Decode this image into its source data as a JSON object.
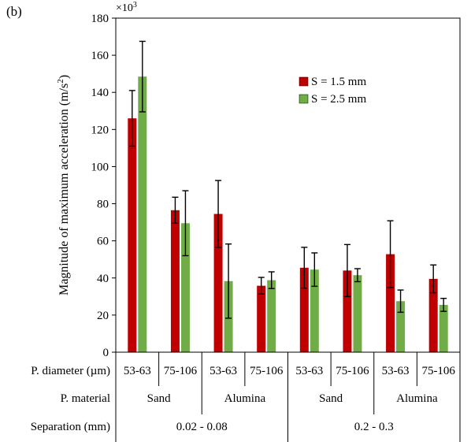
{
  "chart_data": {
    "type": "bar",
    "panel_label": "(b)",
    "ylabel_text": "Magnitude of maximum acceleration (m/s",
    "ylabel_sup": "2",
    "ylabel_tail": ")",
    "y_multiplier": "×10",
    "y_multiplier_exp": "3",
    "ylim": [
      0,
      180
    ],
    "yticks": [
      0,
      20,
      40,
      60,
      80,
      100,
      120,
      140,
      160,
      180
    ],
    "grid": false,
    "legend_position": "top-right",
    "categories": [
      "53-63",
      "75-106",
      "53-63",
      "75-106",
      "53-63",
      "75-106",
      "53-63",
      "75-106"
    ],
    "series": [
      {
        "name": "S = 1.5 mm",
        "color": "#c00000",
        "values": [
          126,
          76.5,
          74.5,
          35.8,
          45.5,
          44,
          52.8,
          39.5
        ],
        "error": [
          15,
          7,
          18,
          4.5,
          11,
          14,
          18,
          7.5
        ]
      },
      {
        "name": "S = 2.5 mm",
        "color": "#70ad47",
        "values": [
          148.5,
          69.5,
          38.3,
          38.8,
          44.5,
          41.5,
          27.5,
          25.5
        ],
        "error": [
          19,
          17.5,
          20,
          4.5,
          9,
          3.5,
          6,
          3.5
        ]
      }
    ],
    "table": {
      "diameter_label": "P. diameter (µm)",
      "material_label": "P. material",
      "separation_label": "Separation (mm)",
      "materials": [
        "Sand",
        "Alumina",
        "Sand",
        "Alumina"
      ],
      "separations": [
        "0.02 - 0.08",
        "0.2 - 0.3"
      ]
    }
  }
}
